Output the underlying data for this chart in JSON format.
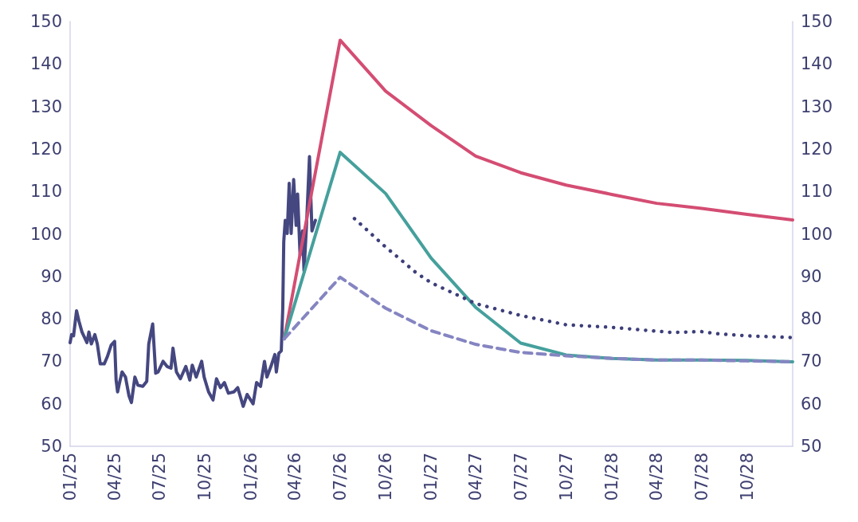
{
  "chart_data": {
    "type": "line",
    "marker": "none",
    "grid": false,
    "xlim": [
      "2025-01-01",
      "2029-01-01"
    ],
    "xticks": [
      {
        "value": "2025-01-01",
        "label": "01/25"
      },
      {
        "value": "2025-04-01",
        "label": "04/25"
      },
      {
        "value": "2025-07-01",
        "label": "07/25"
      },
      {
        "value": "2025-10-01",
        "label": "10/25"
      },
      {
        "value": "2026-01-01",
        "label": "01/26"
      },
      {
        "value": "2026-04-01",
        "label": "04/26"
      },
      {
        "value": "2026-07-01",
        "label": "07/26"
      },
      {
        "value": "2026-10-01",
        "label": "10/26"
      },
      {
        "value": "2027-01-01",
        "label": "01/27"
      },
      {
        "value": "2027-04-01",
        "label": "04/27"
      },
      {
        "value": "2027-07-01",
        "label": "07/27"
      },
      {
        "value": "2027-10-01",
        "label": "10/27"
      },
      {
        "value": "2028-01-01",
        "label": "01/28"
      },
      {
        "value": "2028-04-01",
        "label": "04/28"
      },
      {
        "value": "2028-07-01",
        "label": "07/28"
      },
      {
        "value": "2028-10-01",
        "label": "10/28"
      }
    ],
    "ylim": [
      50,
      150
    ],
    "yticks": [
      50,
      60,
      70,
      80,
      90,
      100,
      110,
      120,
      130,
      140,
      150
    ],
    "y2lim": [
      50,
      150
    ],
    "y2ticks": [
      50,
      60,
      70,
      80,
      90,
      100,
      110,
      120,
      130,
      140,
      150
    ],
    "series": [
      {
        "color": "#454780",
        "line_style": "solid",
        "x": [
          "2025-01-01",
          "2025-01-04",
          "2025-01-08",
          "2025-01-14",
          "2025-01-19",
          "2025-01-25",
          "2025-02-04",
          "2025-02-08",
          "2025-02-13",
          "2025-02-20",
          "2025-02-25",
          "2025-03-03",
          "2025-03-11",
          "2025-03-17",
          "2025-03-25",
          "2025-04-01",
          "2025-04-04",
          "2025-04-07",
          "2025-04-11",
          "2025-04-16",
          "2025-04-23",
          "2025-04-30",
          "2025-05-05",
          "2025-05-12",
          "2025-05-18",
          "2025-05-28",
          "2025-06-05",
          "2025-06-09",
          "2025-06-17",
          "2025-06-23",
          "2025-06-28",
          "2025-07-08",
          "2025-07-16",
          "2025-07-24",
          "2025-07-28",
          "2025-08-04",
          "2025-08-12",
          "2025-08-23",
          "2025-08-31",
          "2025-09-05",
          "2025-09-13",
          "2025-09-24",
          "2025-09-29",
          "2025-10-08",
          "2025-10-17",
          "2025-10-24",
          "2025-11-01",
          "2025-11-09",
          "2025-11-17",
          "2025-11-28",
          "2025-12-06",
          "2025-12-17",
          "2025-12-25",
          "2026-01-06",
          "2026-01-13",
          "2026-01-21",
          "2026-01-29",
          "2026-02-03",
          "2026-02-11",
          "2026-02-19",
          "2026-02-22",
          "2026-02-27",
          "2026-03-04",
          "2026-03-07",
          "2026-03-09",
          "2026-03-12",
          "2026-03-16",
          "2026-03-20",
          "2026-03-24",
          "2026-03-29",
          "2026-04-03",
          "2026-04-06",
          "2026-04-11",
          "2026-04-16",
          "2026-04-19",
          "2026-04-24",
          "2026-04-30",
          "2026-05-05",
          "2026-05-12"
        ],
        "values": [
          74.4,
          76.3,
          76.0,
          81.9,
          79.4,
          76.9,
          74.4,
          76.9,
          74.1,
          76.3,
          74.1,
          69.4,
          69.4,
          71.0,
          73.8,
          74.7,
          65.6,
          62.8,
          65.0,
          67.5,
          66.3,
          61.9,
          60.3,
          66.3,
          64.4,
          64.1,
          65.3,
          74.1,
          78.8,
          67.2,
          67.5,
          70.0,
          68.8,
          68.4,
          73.1,
          67.5,
          65.9,
          68.8,
          65.6,
          69.1,
          66.3,
          70.0,
          66.3,
          62.8,
          60.9,
          65.9,
          63.8,
          65.0,
          62.5,
          62.8,
          63.8,
          59.4,
          62.2,
          60.0,
          65.0,
          64.1,
          70.0,
          66.3,
          68.8,
          71.6,
          67.5,
          71.9,
          72.5,
          82.5,
          98.2,
          103.2,
          100.1,
          111.9,
          100.1,
          112.8,
          102.0,
          109.4,
          95.0,
          100.7,
          91.3,
          102.0,
          118.2,
          100.7,
          103.2
        ]
      },
      {
        "color": "#d44d73",
        "line_style": "solid",
        "x": [
          "2026-03-10",
          "2026-07-01",
          "2026-10-01",
          "2027-01-01",
          "2027-04-01",
          "2027-07-01",
          "2027-10-01",
          "2028-01-01",
          "2028-04-01",
          "2028-07-01",
          "2028-10-01",
          "2029-01-01"
        ],
        "values": [
          75.3,
          145.6,
          133.6,
          125.5,
          118.3,
          114.4,
          111.5,
          109.3,
          107.2,
          106.0,
          104.6,
          103.3
        ]
      },
      {
        "color": "#45a09c",
        "line_style": "solid",
        "x": [
          "2026-03-10",
          "2026-07-01",
          "2026-10-01",
          "2027-01-01",
          "2027-04-01",
          "2027-07-01",
          "2027-10-01",
          "2028-01-01",
          "2028-04-01",
          "2028-07-01",
          "2028-10-01",
          "2029-01-01"
        ],
        "values": [
          75.3,
          119.2,
          109.5,
          94.3,
          82.7,
          74.3,
          71.5,
          70.7,
          70.3,
          70.3,
          70.2,
          69.9
        ]
      },
      {
        "color": "#8585c2",
        "line_style": "dashed",
        "x": [
          "2026-03-10",
          "2026-07-01",
          "2026-10-01",
          "2027-01-01",
          "2027-04-01",
          "2027-07-01",
          "2027-10-01",
          "2028-01-01",
          "2028-04-01",
          "2028-07-01",
          "2028-10-01",
          "2029-01-01"
        ],
        "values": [
          75.3,
          89.8,
          82.5,
          77.2,
          74.0,
          72.1,
          71.3,
          70.7,
          70.3,
          70.3,
          70.1,
          69.9
        ]
      },
      {
        "color": "#3d3f7a",
        "line_style": "dotted",
        "x": [
          "2026-07-30",
          "2026-09-01",
          "2026-10-01",
          "2026-11-01",
          "2026-12-01",
          "2027-01-01",
          "2027-04-01",
          "2027-07-01",
          "2027-10-01",
          "2028-01-01",
          "2028-05-01",
          "2028-07-01",
          "2028-08-01",
          "2028-10-01",
          "2029-01-01"
        ],
        "values": [
          103.6,
          100.1,
          96.9,
          93.9,
          90.9,
          88.5,
          83.6,
          80.8,
          78.6,
          78.0,
          76.8,
          77.0,
          76.5,
          76.0,
          75.6
        ]
      }
    ]
  }
}
